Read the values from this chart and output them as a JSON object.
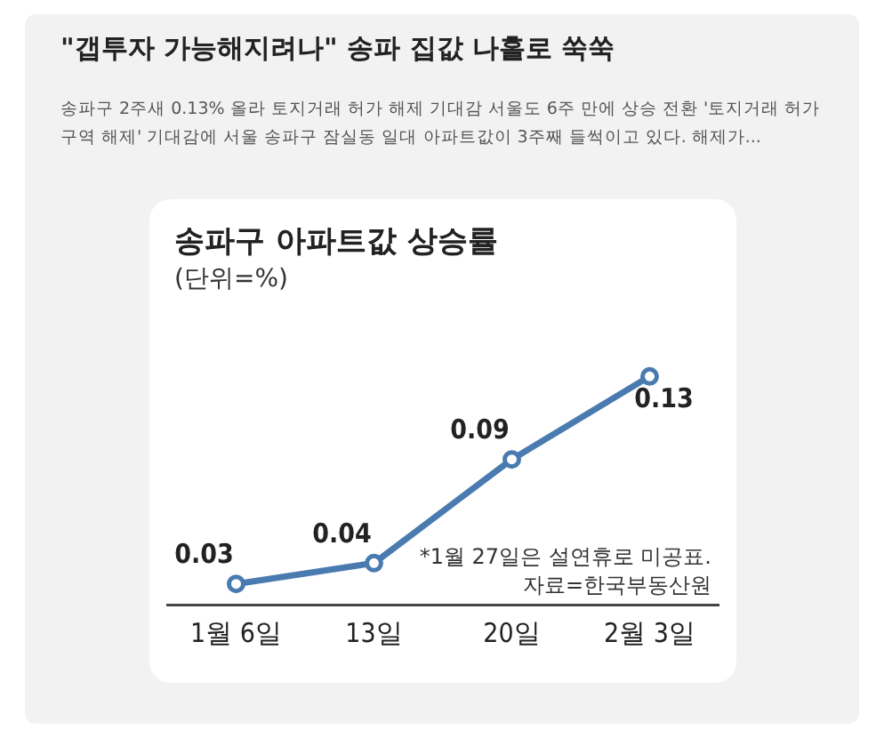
{
  "chart_data": {
    "type": "line",
    "title": "\"갭투자 가능해지려나\" 송파 집값 나홀로 쑥쑥",
    "subtitle": "송파구 2주새 0.13% 올라 토지거래 허가 해제 기대감 서울도 6주 만에 상승 전환 '토지거래 허가구역 해제' 기대감에 서울 송파구 잠실동 일대 아파트값이 3주째 들썩이고 있다. 해제가...",
    "annotations": [
      "송파구 아파트값 상승률",
      "(단위=%)",
      "*1월 27일은 설연휴로 미공표.",
      "자료=한국부동산원"
    ],
    "categories": [
      "1월 6일",
      "13일",
      "20일",
      "2월 3일"
    ],
    "values": [
      0.03,
      0.04,
      0.09,
      0.13
    ],
    "color": "#4a7bb0",
    "marker": "circle",
    "line_style": "solid",
    "data_labels": true,
    "grid": false,
    "legend": false,
    "tick_labels": "x"
  }
}
